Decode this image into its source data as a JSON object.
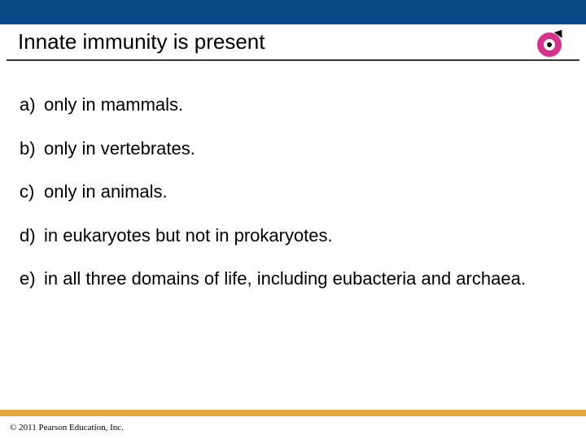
{
  "colors": {
    "top_bar": "#0b4b85",
    "title_underline": "#333333",
    "footer_bar": "#e0a838",
    "background": "#ffffff",
    "text": "#000000",
    "logo_bg": "#d6348a",
    "logo_inner": "#ffffff",
    "logo_dot": "#000000"
  },
  "title": "Innate immunity is present",
  "options": [
    {
      "marker": "a)",
      "text": "only in mammals."
    },
    {
      "marker": "b)",
      "text": "only in vertebrates."
    },
    {
      "marker": "c)",
      "text": "only in animals."
    },
    {
      "marker": "d)",
      "text": "in eukaryotes but not in prokaryotes."
    },
    {
      "marker": "e)",
      "text": "in all three domains of life, including eubacteria and archaea."
    }
  ],
  "copyright": "© 2011 Pearson Education, Inc.",
  "typography": {
    "title_fontsize": 26,
    "option_fontsize": 22,
    "copyright_fontsize": 11
  }
}
